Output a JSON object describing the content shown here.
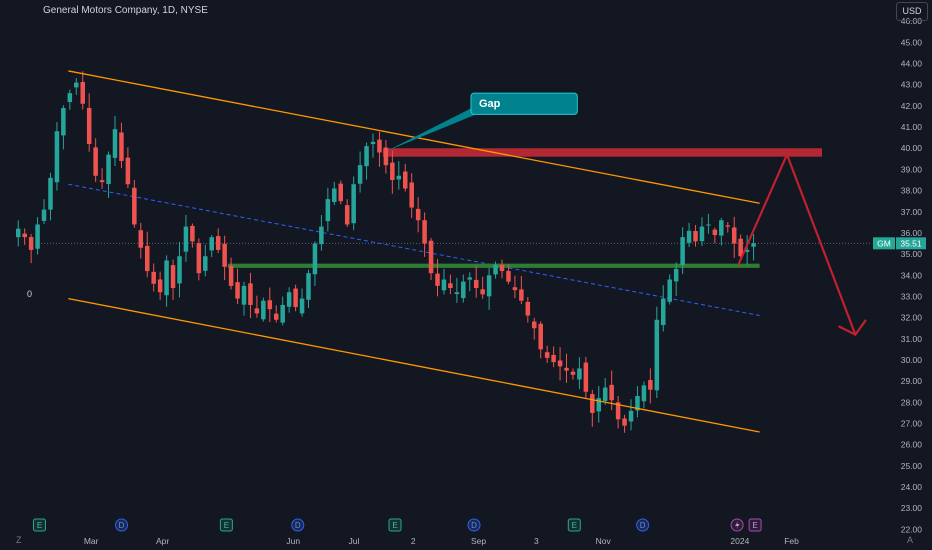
{
  "header": {
    "symbol_title": "General Motors Company, 1D, NYSE",
    "currency": "USD"
  },
  "left_label": "0",
  "corner_left": "Z",
  "corner_right": "A",
  "colors": {
    "background": "#131722",
    "up": "#26a69a",
    "down": "#ef5350",
    "channel": "#ff9800",
    "midline": "#2962ff",
    "resistance": "#b22833",
    "support": "#2e7d32",
    "projection": "#c2202f",
    "callout": "#00838f"
  },
  "chart_data": {
    "type": "candlestick",
    "symbol": "GM",
    "last_price": "35.51",
    "y_axis": {
      "range": [
        21.5,
        47
      ],
      "ticks": [
        "46.00",
        "45.00",
        "44.00",
        "43.00",
        "42.00",
        "41.00",
        "40.00",
        "39.00",
        "38.00",
        "37.00",
        "36.00",
        "35.00",
        "34.00",
        "33.00",
        "32.00",
        "31.00",
        "30.00",
        "29.00",
        "28.00",
        "27.00",
        "26.00",
        "25.00",
        "24.00",
        "23.00",
        "22.00"
      ]
    },
    "x_axis": {
      "range": [
        0,
        57
      ],
      "tick_labels": [
        {
          "label": "Mar",
          "x": 6
        },
        {
          "label": "Apr",
          "x": 10.7
        },
        {
          "label": "Jun",
          "x": 19.3
        },
        {
          "label": "Jul",
          "x": 23.3
        },
        {
          "label": "2",
          "x": 27.2
        },
        {
          "label": "Sep",
          "x": 31.5
        },
        {
          "label": "3",
          "x": 35.3
        },
        {
          "label": "Nov",
          "x": 39.7
        },
        {
          "label": "2024",
          "x": 48.7
        },
        {
          "label": "Feb",
          "x": 52.1
        }
      ]
    },
    "candles_close": [
      36.2,
      35.8,
      35.2,
      36.4,
      37.1,
      38.6,
      40.8,
      41.9,
      42.6,
      43.1,
      42.1,
      40.2,
      38.7,
      38.4,
      39.7,
      40.9,
      39.4,
      38.3,
      36.4,
      35.3,
      34.2,
      33.6,
      33.2,
      34.7,
      33.4,
      34.9,
      36.3,
      35.6,
      34.1,
      34.9,
      35.8,
      35.2,
      34.4,
      33.5,
      32.9,
      33.5,
      32.6,
      32.2,
      32.8,
      32.4,
      31.9,
      32.6,
      33.2,
      32.5,
      32.9,
      34.1,
      35.5,
      36.3,
      37.6,
      38.1,
      37.5,
      36.4,
      38.3,
      39.2,
      40.1,
      40.3,
      39.8,
      39.2,
      38.5,
      38.7,
      38.1,
      37.2,
      36.6,
      35.5,
      34.1,
      33.5,
      33.8,
      33.4,
      33.2,
      33.7,
      33.9,
      33.4,
      33.1,
      34.0,
      34.5,
      34.2,
      33.7,
      33.3,
      32.8,
      32.1,
      31.5,
      30.5,
      30.1,
      29.9,
      29.7,
      29.5,
      29.3,
      29.6,
      28.5,
      27.5,
      28.2,
      28.7,
      28.1,
      27.2,
      26.9,
      27.6,
      28.3,
      28.8,
      28.6,
      31.9,
      32.9,
      33.8,
      34.3,
      35.8,
      36.1,
      35.6,
      36.3,
      36.4,
      35.9,
      36.6,
      36.3,
      35.5,
      34.9,
      35.2,
      35.51
    ],
    "candles_x_start": 1.2,
    "candles_x_end": 49.6,
    "channel_upper": [
      [
        4.5,
        43.65
      ],
      [
        50,
        37.4
      ]
    ],
    "channel_lower": [
      [
        4.5,
        32.9
      ],
      [
        50,
        26.6
      ]
    ],
    "channel_mid": [
      [
        4.5,
        38.3
      ],
      [
        50,
        32.1
      ]
    ],
    "resistance_zone": {
      "x": [
        25.2,
        57
      ],
      "y": [
        39.6,
        40.0
      ]
    },
    "support_zone": {
      "x": [
        15,
        50
      ],
      "y": [
        34.35,
        34.55
      ]
    },
    "projection": [
      [
        48.6,
        34.5
      ],
      [
        51.8,
        39.7
      ],
      [
        56.3,
        31.2
      ]
    ],
    "callout": {
      "label": "Gap",
      "box_x": [
        31,
        38
      ],
      "box_y": [
        41.6,
        42.6
      ],
      "anchor": [
        25.4,
        39.85
      ]
    },
    "events": [
      {
        "label": "E",
        "x": 2.6,
        "kind": "earnings"
      },
      {
        "label": "D",
        "x": 8.0,
        "kind": "dividend"
      },
      {
        "label": "E",
        "x": 14.9,
        "kind": "earnings"
      },
      {
        "label": "D",
        "x": 19.6,
        "kind": "dividend"
      },
      {
        "label": "E",
        "x": 26.0,
        "kind": "earnings"
      },
      {
        "label": "D",
        "x": 31.2,
        "kind": "dividend"
      },
      {
        "label": "E",
        "x": 37.8,
        "kind": "earnings"
      },
      {
        "label": "D",
        "x": 42.3,
        "kind": "dividend"
      },
      {
        "label": "E",
        "x": 49.7,
        "kind": "earnings-upcoming"
      }
    ]
  }
}
